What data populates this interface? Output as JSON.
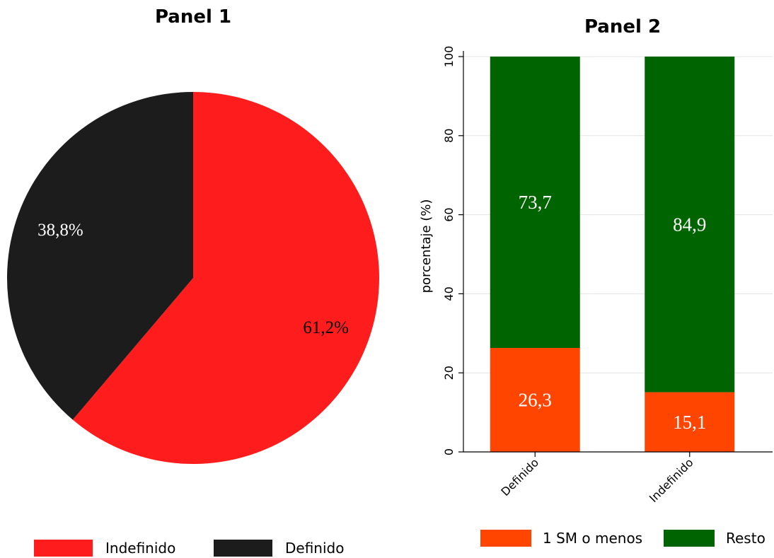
{
  "chart_data": [
    {
      "type": "pie",
      "title": "Panel 1",
      "slices": [
        {
          "label": "Indefinido",
          "value": 61.2,
          "text": "61,2%",
          "color": "#ff1c1c"
        },
        {
          "label": "Definido",
          "value": 38.8,
          "text": "38,8%",
          "color": "#1c1c1c"
        }
      ],
      "legend": {
        "placement": "bottom",
        "entries": [
          "Indefinido",
          "Definido"
        ]
      }
    },
    {
      "type": "bar",
      "stacked": true,
      "title": "Panel 2",
      "ylabel": "porcentaje (%)",
      "ylim": [
        0,
        100
      ],
      "yticks": [
        0,
        20,
        40,
        60,
        80,
        100
      ],
      "categories": [
        "Definido",
        "Indefinido"
      ],
      "series": [
        {
          "name": "1 SM o menos",
          "values": [
            26.3,
            15.1
          ],
          "labels": [
            "26,3",
            "15,1"
          ],
          "color": "#ff4500"
        },
        {
          "name": "Resto",
          "values": [
            73.7,
            84.9
          ],
          "labels": [
            "73,7",
            "84,9"
          ],
          "color": "#006400"
        }
      ],
      "grid": true,
      "legend": {
        "placement": "bottom",
        "entries": [
          "1 SM o menos",
          "Resto"
        ]
      }
    }
  ]
}
